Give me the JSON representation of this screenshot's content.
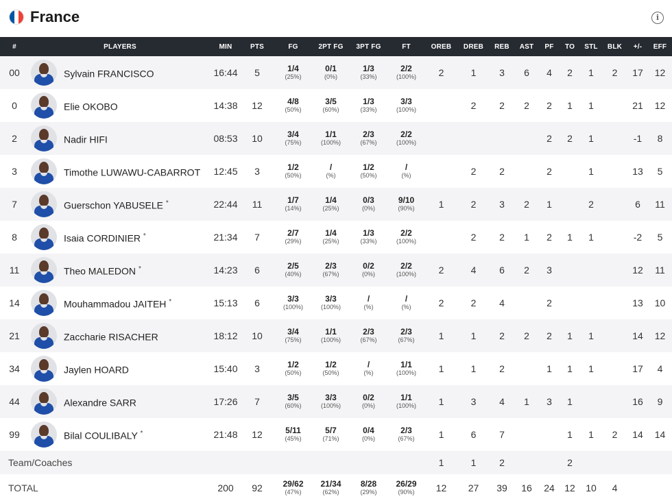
{
  "team": {
    "name": "France",
    "flag_colors": [
      "#0055a4",
      "#ffffff",
      "#ef4135"
    ]
  },
  "columns": [
    "#",
    "PLAYERS",
    "MIN",
    "PTS",
    "FG",
    "2PT FG",
    "3PT FG",
    "FT",
    "OREB",
    "DREB",
    "REB",
    "AST",
    "PF",
    "TO",
    "STL",
    "BLK",
    "+/-",
    "EFF"
  ],
  "players": [
    {
      "no": "00",
      "name": "Sylvain FRANCISCO",
      "starter": "",
      "min": "16:44",
      "pts": "5",
      "fg": "1/4",
      "fg_pct": "(25%)",
      "fg2": "0/1",
      "fg2_pct": "(0%)",
      "fg3": "1/3",
      "fg3_pct": "(33%)",
      "ft": "2/2",
      "ft_pct": "(100%)",
      "oreb": "2",
      "dreb": "1",
      "reb": "3",
      "ast": "6",
      "pf": "4",
      "to": "2",
      "stl": "1",
      "blk": "2",
      "pm": "17",
      "eff": "12"
    },
    {
      "no": "0",
      "name": "Elie OKOBO",
      "starter": "",
      "min": "14:38",
      "pts": "12",
      "fg": "4/8",
      "fg_pct": "(50%)",
      "fg2": "3/5",
      "fg2_pct": "(60%)",
      "fg3": "1/3",
      "fg3_pct": "(33%)",
      "ft": "3/3",
      "ft_pct": "(100%)",
      "oreb": "",
      "dreb": "2",
      "reb": "2",
      "ast": "2",
      "pf": "2",
      "to": "1",
      "stl": "1",
      "blk": "",
      "pm": "21",
      "eff": "12"
    },
    {
      "no": "2",
      "name": "Nadir HIFI",
      "starter": "",
      "min": "08:53",
      "pts": "10",
      "fg": "3/4",
      "fg_pct": "(75%)",
      "fg2": "1/1",
      "fg2_pct": "(100%)",
      "fg3": "2/3",
      "fg3_pct": "(67%)",
      "ft": "2/2",
      "ft_pct": "(100%)",
      "oreb": "",
      "dreb": "",
      "reb": "",
      "ast": "",
      "pf": "2",
      "to": "2",
      "stl": "1",
      "blk": "",
      "pm": "-1",
      "eff": "8"
    },
    {
      "no": "3",
      "name": "Timothe LUWAWU-CABARROT",
      "starter": "",
      "min": "12:45",
      "pts": "3",
      "fg": "1/2",
      "fg_pct": "(50%)",
      "fg2": "/",
      "fg2_pct": "(%)",
      "fg3": "1/2",
      "fg3_pct": "(50%)",
      "ft": "/",
      "ft_pct": "(%)",
      "oreb": "",
      "dreb": "2",
      "reb": "2",
      "ast": "",
      "pf": "2",
      "to": "",
      "stl": "1",
      "blk": "",
      "pm": "13",
      "eff": "5"
    },
    {
      "no": "7",
      "name": "Guerschon YABUSELE",
      "starter": "*",
      "min": "22:44",
      "pts": "11",
      "fg": "1/7",
      "fg_pct": "(14%)",
      "fg2": "1/4",
      "fg2_pct": "(25%)",
      "fg3": "0/3",
      "fg3_pct": "(0%)",
      "ft": "9/10",
      "ft_pct": "(90%)",
      "oreb": "1",
      "dreb": "2",
      "reb": "3",
      "ast": "2",
      "pf": "1",
      "to": "",
      "stl": "2",
      "blk": "",
      "pm": "6",
      "eff": "11"
    },
    {
      "no": "8",
      "name": "Isaia CORDINIER",
      "starter": "*",
      "min": "21:34",
      "pts": "7",
      "fg": "2/7",
      "fg_pct": "(29%)",
      "fg2": "1/4",
      "fg2_pct": "(25%)",
      "fg3": "1/3",
      "fg3_pct": "(33%)",
      "ft": "2/2",
      "ft_pct": "(100%)",
      "oreb": "",
      "dreb": "2",
      "reb": "2",
      "ast": "1",
      "pf": "2",
      "to": "1",
      "stl": "1",
      "blk": "",
      "pm": "-2",
      "eff": "5"
    },
    {
      "no": "11",
      "name": "Theo MALEDON",
      "starter": "*",
      "min": "14:23",
      "pts": "6",
      "fg": "2/5",
      "fg_pct": "(40%)",
      "fg2": "2/3",
      "fg2_pct": "(67%)",
      "fg3": "0/2",
      "fg3_pct": "(0%)",
      "ft": "2/2",
      "ft_pct": "(100%)",
      "oreb": "2",
      "dreb": "4",
      "reb": "6",
      "ast": "2",
      "pf": "3",
      "to": "",
      "stl": "",
      "blk": "",
      "pm": "12",
      "eff": "11"
    },
    {
      "no": "14",
      "name": "Mouhammadou JAITEH",
      "starter": "*",
      "min": "15:13",
      "pts": "6",
      "fg": "3/3",
      "fg_pct": "(100%)",
      "fg2": "3/3",
      "fg2_pct": "(100%)",
      "fg3": "/",
      "fg3_pct": "(%)",
      "ft": "/",
      "ft_pct": "(%)",
      "oreb": "2",
      "dreb": "2",
      "reb": "4",
      "ast": "",
      "pf": "2",
      "to": "",
      "stl": "",
      "blk": "",
      "pm": "13",
      "eff": "10"
    },
    {
      "no": "21",
      "name": "Zaccharie RISACHER",
      "starter": "",
      "min": "18:12",
      "pts": "10",
      "fg": "3/4",
      "fg_pct": "(75%)",
      "fg2": "1/1",
      "fg2_pct": "(100%)",
      "fg3": "2/3",
      "fg3_pct": "(67%)",
      "ft": "2/3",
      "ft_pct": "(67%)",
      "oreb": "1",
      "dreb": "1",
      "reb": "2",
      "ast": "2",
      "pf": "2",
      "to": "1",
      "stl": "1",
      "blk": "",
      "pm": "14",
      "eff": "12"
    },
    {
      "no": "34",
      "name": "Jaylen HOARD",
      "starter": "",
      "min": "15:40",
      "pts": "3",
      "fg": "1/2",
      "fg_pct": "(50%)",
      "fg2": "1/2",
      "fg2_pct": "(50%)",
      "fg3": "/",
      "fg3_pct": "(%)",
      "ft": "1/1",
      "ft_pct": "(100%)",
      "oreb": "1",
      "dreb": "1",
      "reb": "2",
      "ast": "",
      "pf": "1",
      "to": "1",
      "stl": "1",
      "blk": "",
      "pm": "17",
      "eff": "4"
    },
    {
      "no": "44",
      "name": "Alexandre SARR",
      "starter": "",
      "min": "17:26",
      "pts": "7",
      "fg": "3/5",
      "fg_pct": "(60%)",
      "fg2": "3/3",
      "fg2_pct": "(100%)",
      "fg3": "0/2",
      "fg3_pct": "(0%)",
      "ft": "1/1",
      "ft_pct": "(100%)",
      "oreb": "1",
      "dreb": "3",
      "reb": "4",
      "ast": "1",
      "pf": "3",
      "to": "1",
      "stl": "",
      "blk": "",
      "pm": "16",
      "eff": "9"
    },
    {
      "no": "99",
      "name": "Bilal COULIBALY",
      "starter": "*",
      "min": "21:48",
      "pts": "12",
      "fg": "5/11",
      "fg_pct": "(45%)",
      "fg2": "5/7",
      "fg2_pct": "(71%)",
      "fg3": "0/4",
      "fg3_pct": "(0%)",
      "ft": "2/3",
      "ft_pct": "(67%)",
      "oreb": "1",
      "dreb": "6",
      "reb": "7",
      "ast": "",
      "pf": "",
      "to": "1",
      "stl": "1",
      "blk": "2",
      "pm": "14",
      "eff": "14"
    }
  ],
  "coaches": {
    "label": "Team/Coaches",
    "oreb": "1",
    "dreb": "1",
    "reb": "2",
    "ast": "",
    "pf": "",
    "to": "2",
    "stl": "",
    "blk": "",
    "pm": "",
    "eff": ""
  },
  "total": {
    "label": "TOTAL",
    "min": "200",
    "pts": "92",
    "fg": "29/62",
    "fg_pct": "(47%)",
    "fg2": "21/34",
    "fg2_pct": "(62%)",
    "fg3": "8/28",
    "fg3_pct": "(29%)",
    "ft": "26/29",
    "ft_pct": "(90%)",
    "oreb": "12",
    "dreb": "27",
    "reb": "39",
    "ast": "16",
    "pf": "24",
    "to": "12",
    "stl": "10",
    "blk": "4",
    "pm": "",
    "eff": ""
  }
}
